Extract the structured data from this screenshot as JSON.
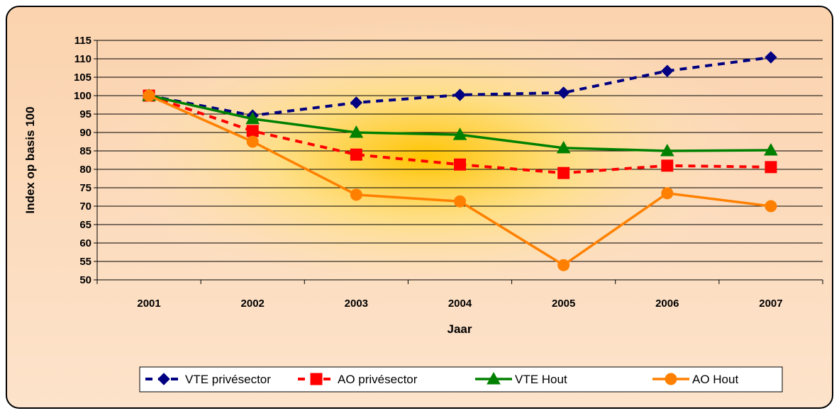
{
  "chart_data": {
    "type": "line",
    "x_label": "Jaar",
    "y_label": "Index op basis 100",
    "categories": [
      "2001",
      "2002",
      "2003",
      "2004",
      "2005",
      "2006",
      "2007"
    ],
    "ylim": [
      50,
      115
    ],
    "yticks": [
      50,
      55,
      60,
      65,
      70,
      75,
      80,
      85,
      90,
      95,
      100,
      105,
      110,
      115
    ],
    "grid": true,
    "legend": "bottom",
    "series": [
      {
        "name": "VTE privésector",
        "color": "#000080",
        "marker": "diamond",
        "dash": true,
        "values": [
          100,
          94.6,
          98.1,
          100.2,
          100.8,
          106.7,
          110.4
        ]
      },
      {
        "name": "AO privésector",
        "color": "#ff0000",
        "marker": "square",
        "dash": true,
        "values": [
          100,
          90.4,
          84,
          81.3,
          79,
          81,
          80.6
        ]
      },
      {
        "name": "VTE Hout",
        "color": "#008000",
        "marker": "triangle",
        "dash": false,
        "values": [
          100,
          93.7,
          90,
          89.4,
          85.8,
          85,
          85.2
        ]
      },
      {
        "name": "AO Hout",
        "color": "#ff8000",
        "marker": "circle",
        "dash": false,
        "values": [
          100,
          87.5,
          73.1,
          71.3,
          54,
          73.5,
          70
        ]
      }
    ]
  }
}
